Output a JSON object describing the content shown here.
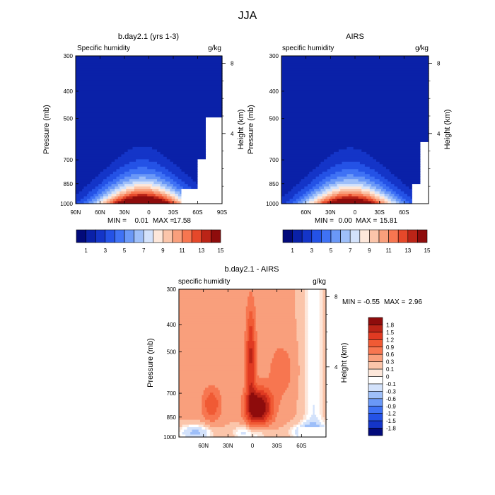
{
  "chart_data": [
    {
      "type": "heatmap",
      "title": "JJA",
      "panel_title": "b.day2.1 (yrs 1-3)",
      "left_label": "Specific humidity",
      "units": "g/kg",
      "ylabel": "Pressure (mb)",
      "ylabel_right": "Height (km)",
      "x_ticks": [
        "90N",
        "60N",
        "30N",
        "0",
        "30S",
        "60S",
        "90S"
      ],
      "x_range": [
        90,
        -90
      ],
      "y_ticks": [
        300,
        400,
        500,
        700,
        850,
        1000
      ],
      "y_ticks_right": [
        "8",
        "4"
      ],
      "min_label": "MIN =",
      "min_value": "0.01",
      "max_label": "MAX =",
      "max_value": "17.58",
      "peak": {
        "lat": 8,
        "value": 17.58
      },
      "colorbar_labels": [
        "1",
        "3",
        "5",
        "7",
        "9",
        "11",
        "13",
        "15"
      ],
      "colors": [
        "#020a7a",
        "#0a21a8",
        "#1435c8",
        "#2452e6",
        "#3f72f5",
        "#6a98f7",
        "#9ebff9",
        "#d3e2fb",
        "#fde7da",
        "#fbc5aa",
        "#f99f7c",
        "#f77650",
        "#e5482a",
        "#bb2417",
        "#8e0c0c"
      ]
    },
    {
      "type": "heatmap",
      "panel_title": "AIRS",
      "left_label": "specific humidity",
      "units": "g/kg",
      "ylabel": "Pressure (mb)",
      "ylabel_right": "Height (km)",
      "x_ticks": [
        "60N",
        "30N",
        "0",
        "30S",
        "60S"
      ],
      "x_range": [
        90,
        -90
      ],
      "y_ticks": [
        300,
        400,
        500,
        700,
        850,
        1000
      ],
      "y_ticks_right": [
        "8",
        "4"
      ],
      "min_label": "MIN =",
      "min_value": "0.00",
      "max_label": "MAX =",
      "max_value": "15.81",
      "peak": {
        "lat": 6,
        "value": 15.81
      },
      "colorbar_labels": [
        "1",
        "3",
        "5",
        "7",
        "9",
        "11",
        "13",
        "15"
      ],
      "colors": [
        "#020a7a",
        "#0a21a8",
        "#1435c8",
        "#2452e6",
        "#3f72f5",
        "#6a98f7",
        "#9ebff9",
        "#d3e2fb",
        "#fde7da",
        "#fbc5aa",
        "#f99f7c",
        "#f77650",
        "#e5482a",
        "#bb2417",
        "#8e0c0c"
      ]
    },
    {
      "type": "heatmap",
      "panel_title": "b.day2.1 - AIRS",
      "left_label": "specific humidity",
      "units": "g/kg",
      "ylabel": "Pressure (mb)",
      "ylabel_right": "Height (km)",
      "x_ticks": [
        "60N",
        "30N",
        "0",
        "30S",
        "60S"
      ],
      "x_range": [
        90,
        -90
      ],
      "y_ticks": [
        300,
        400,
        500,
        700,
        850,
        1000
      ],
      "y_ticks_right": [
        "8",
        "4"
      ],
      "min_label": "MIN =",
      "min_value": "-0.55",
      "max_label": "MAX =",
      "max_value": "2.96",
      "colorbar_labels": [
        "1.8",
        "1.5",
        "1.2",
        "0.9",
        "0.6",
        "0.3",
        "0.1",
        "0",
        "-0.1",
        "-0.3",
        "-0.6",
        "-0.9",
        "-1.2",
        "-1.5",
        "-1.8"
      ],
      "colors": [
        "#8e0c0c",
        "#bb2417",
        "#e03a22",
        "#f05a34",
        "#f77650",
        "#f99f7c",
        "#fbc5aa",
        "#fde7da",
        "#ffffff",
        "#d3e2fb",
        "#9ebff9",
        "#6a98f7",
        "#3f72f5",
        "#2452e6",
        "#1435c8",
        "#020a7a"
      ]
    }
  ]
}
